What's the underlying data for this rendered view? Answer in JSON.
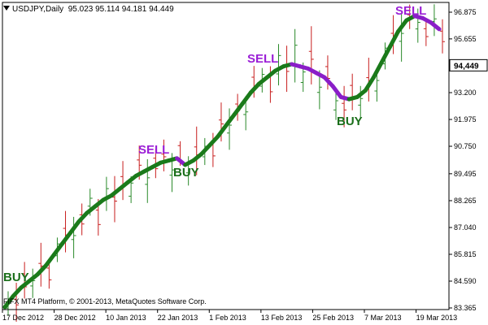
{
  "header": {
    "symbol_label": "USDJPY,Daily",
    "ohlc": "95.023 95.114 94.181 94.449"
  },
  "footer": {
    "copyright": "FIFX MT4 Platform, © 2001-2013, MetaQuotes Software Corp."
  },
  "price_axis": {
    "ticks": [
      "96.875",
      "95.655",
      "94.449",
      "93.200",
      "91.975",
      "90.750",
      "89.495",
      "88.265",
      "87.040",
      "85.815",
      "84.590",
      "83.365"
    ],
    "current_price": "94,449",
    "current_price_value": 94.449
  },
  "time_axis": {
    "ticks": [
      "17 Dec 2012",
      "28 Dec 2012",
      "10 Jan 2013",
      "22 Jan 2013",
      "1 Feb 2013",
      "13 Feb 2013",
      "25 Feb 2013",
      "7 Mar 2013",
      "19 Mar 2013"
    ]
  },
  "signals": [
    {
      "text": "BUY",
      "type": "buy"
    },
    {
      "text": "SELL",
      "type": "sell"
    },
    {
      "text": "BUY",
      "type": "buy"
    },
    {
      "text": "SELL",
      "type": "sell"
    },
    {
      "text": "BUY",
      "type": "buy"
    },
    {
      "text": "SELL",
      "type": "sell"
    }
  ],
  "colors": {
    "bull_bar": "#2a8a2a",
    "bear_bar": "#c81e1e",
    "trend_up": "#1a7a1a",
    "trend_down": "#8a1ec8",
    "current_price_bg": "#ffffff",
    "grid": "#000000"
  },
  "chart_data": {
    "type": "line",
    "ylim": [
      83.365,
      96.875
    ],
    "series": [
      {
        "values": [
          83.4,
          83.9,
          84.3,
          84.6,
          84.9,
          85.3,
          85.8,
          86.3,
          86.8,
          87.3,
          87.7,
          88.0,
          88.3,
          88.5,
          88.8,
          89.1,
          89.4,
          89.6,
          89.8,
          90.0,
          90.1,
          90.2,
          89.9,
          90.1,
          90.4,
          90.8,
          91.2,
          91.7,
          92.2,
          92.7,
          93.2,
          93.6,
          93.9,
          94.2,
          94.4,
          94.5,
          94.4,
          94.3,
          94.1,
          93.9,
          93.5,
          93.0,
          92.9,
          93.0,
          93.3,
          93.9,
          94.6,
          95.3,
          96.0,
          96.5,
          96.7,
          96.6,
          96.4,
          96.1
        ]
      }
    ]
  }
}
